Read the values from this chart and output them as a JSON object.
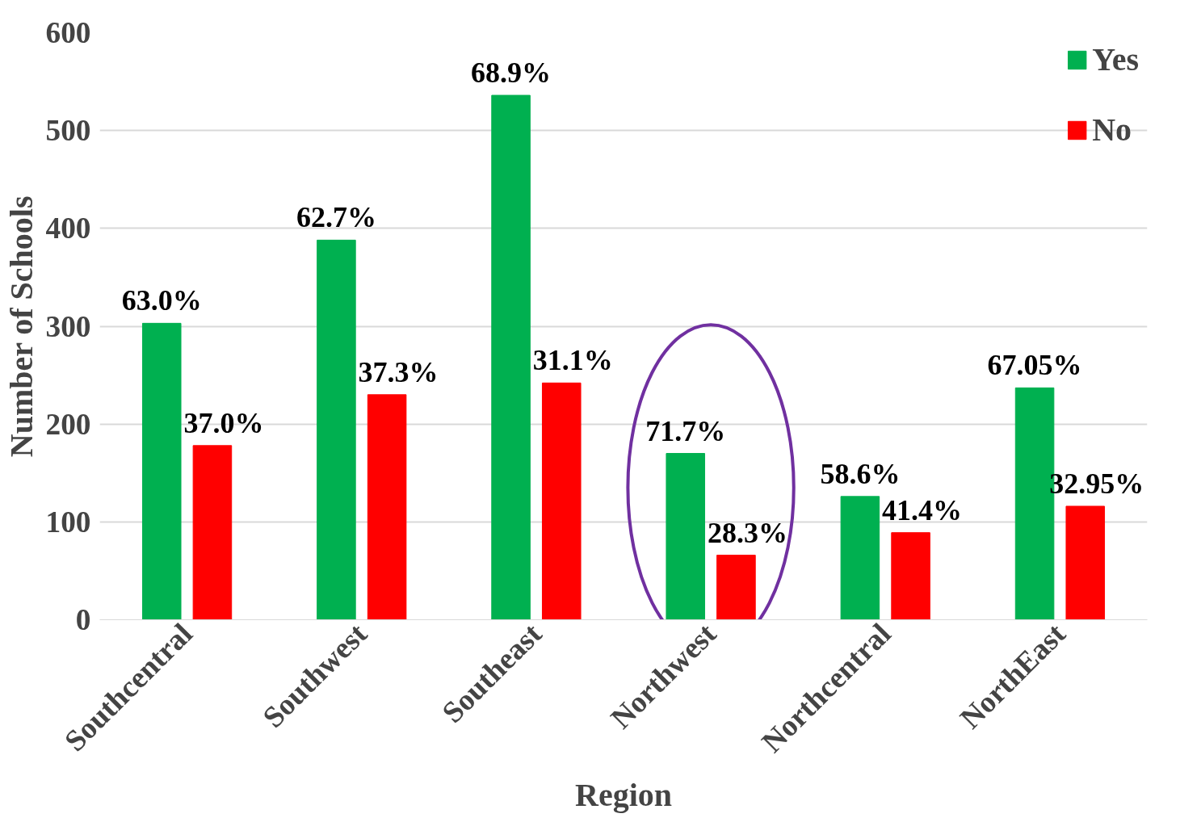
{
  "chart_data": {
    "type": "bar",
    "xlabel": "Region",
    "ylabel": "Number of Schools",
    "categories": [
      "Southcentral",
      "Southwest",
      "Southeast",
      "Northwest",
      "Northcentral",
      "NorthEast"
    ],
    "series": [
      {
        "name": "Yes",
        "color": "#00b050",
        "values": [
          303,
          388,
          536,
          170,
          126,
          237
        ]
      },
      {
        "name": "No",
        "color": "#ff0000",
        "values": [
          178,
          230,
          242,
          66,
          89,
          116
        ]
      }
    ],
    "annotations": [
      "63.0%",
      "62.7%",
      "68.9%",
      "71.7%",
      "58.6%",
      "67.05%",
      "37.0%",
      "37.3%",
      "31.1%",
      "28.3%",
      "41.4%",
      "32.95%"
    ],
    "ylim": [
      0,
      600
    ],
    "yticks": [
      0,
      100,
      200,
      300,
      400,
      500,
      600
    ],
    "grid": "y",
    "legend": "top right"
  }
}
